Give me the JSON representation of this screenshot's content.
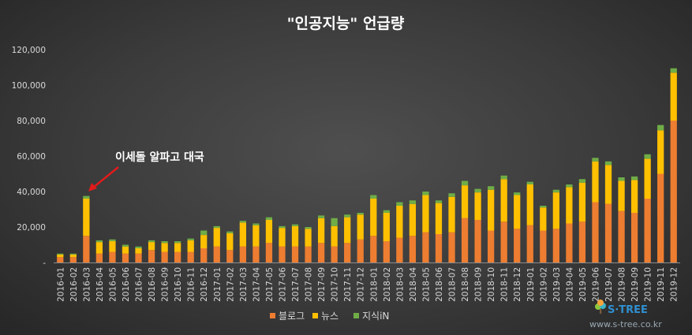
{
  "chart_data": {
    "type": "bar",
    "stacked": true,
    "title": "\"인공지능\"  언급량",
    "xlabel": "",
    "ylabel": "",
    "ylim": [
      0,
      120000
    ],
    "yticks": [
      0,
      20000,
      40000,
      60000,
      80000,
      100000,
      120000
    ],
    "ytick_labels": [
      "-",
      "20,000",
      "40,000",
      "60,000",
      "80,000",
      "100,000",
      "120,000"
    ],
    "grid": false,
    "legend_position": "bottom",
    "categories": [
      "2016-01",
      "2016-02",
      "2016-03",
      "2016-04",
      "2016-05",
      "2016-06",
      "2016-07",
      "2016-08",
      "2016-09",
      "2016-10",
      "2016-11",
      "2016-12",
      "2017-01",
      "2017-02",
      "2017-03",
      "2017-04",
      "2017-05",
      "2017-06",
      "2017-07",
      "2017-08",
      "2017-09",
      "2017-10",
      "2017-11",
      "2017-12",
      "2018-01",
      "2018-02",
      "2018-03",
      "2018-04",
      "2018-05",
      "2018-06",
      "2018-07",
      "2018-08",
      "2018-09",
      "2018-10",
      "2018-11",
      "2018-12",
      "2019-01",
      "2019-02",
      "2019-03",
      "2019-04",
      "2019-05",
      "2019-06",
      "2019-07",
      "2019-08",
      "2019-09",
      "2019-10",
      "2019-11",
      "2019-12"
    ],
    "series": [
      {
        "name": "블로그",
        "color": "#ed7d31",
        "values": [
          3000,
          3000,
          15000,
          5000,
          6000,
          5000,
          5000,
          7000,
          6000,
          6000,
          6000,
          8000,
          9000,
          7000,
          9000,
          9000,
          11000,
          9000,
          9000,
          9000,
          11000,
          9000,
          11000,
          13000,
          15000,
          12000,
          14000,
          15000,
          17000,
          16000,
          17000,
          25000,
          24000,
          18000,
          23000,
          19000,
          21000,
          18000,
          19000,
          22000,
          23000,
          34000,
          33000,
          29000,
          28000,
          36000,
          50000,
          80000
        ]
      },
      {
        "name": "뉴스",
        "color": "#ffc000",
        "values": [
          1500,
          1500,
          21000,
          6500,
          6000,
          4000,
          3000,
          4500,
          5000,
          5000,
          6500,
          7500,
          10500,
          9500,
          13500,
          12000,
          13000,
          10500,
          11500,
          10000,
          14000,
          11500,
          14500,
          14000,
          21000,
          16000,
          18000,
          18000,
          21000,
          17500,
          20000,
          18500,
          15500,
          23000,
          24000,
          19000,
          23000,
          13000,
          20500,
          20500,
          22000,
          23000,
          22000,
          17000,
          18500,
          22500,
          24500,
          27000
        ]
      },
      {
        "name": "지식iN",
        "color": "#70ad47",
        "values": [
          500,
          500,
          1500,
          1000,
          1000,
          1000,
          1000,
          1000,
          1000,
          1000,
          1000,
          2500,
          1000,
          1000,
          1000,
          1000,
          1500,
          1000,
          1000,
          1000,
          1500,
          4500,
          1500,
          1000,
          2000,
          1500,
          2000,
          2000,
          2000,
          1500,
          2000,
          2500,
          2000,
          2000,
          2000,
          1500,
          1500,
          1000,
          1500,
          1500,
          2000,
          2000,
          2000,
          2000,
          2000,
          2500,
          3000,
          2500
        ]
      }
    ],
    "annotations": [
      {
        "text": "이세돌 알파고 대국",
        "target_category": "2016-03"
      }
    ]
  },
  "branding": {
    "logo_text": "S·TREE",
    "site_text": "www.s-tree.co.kr",
    "icon": "tree-logo-icon"
  }
}
